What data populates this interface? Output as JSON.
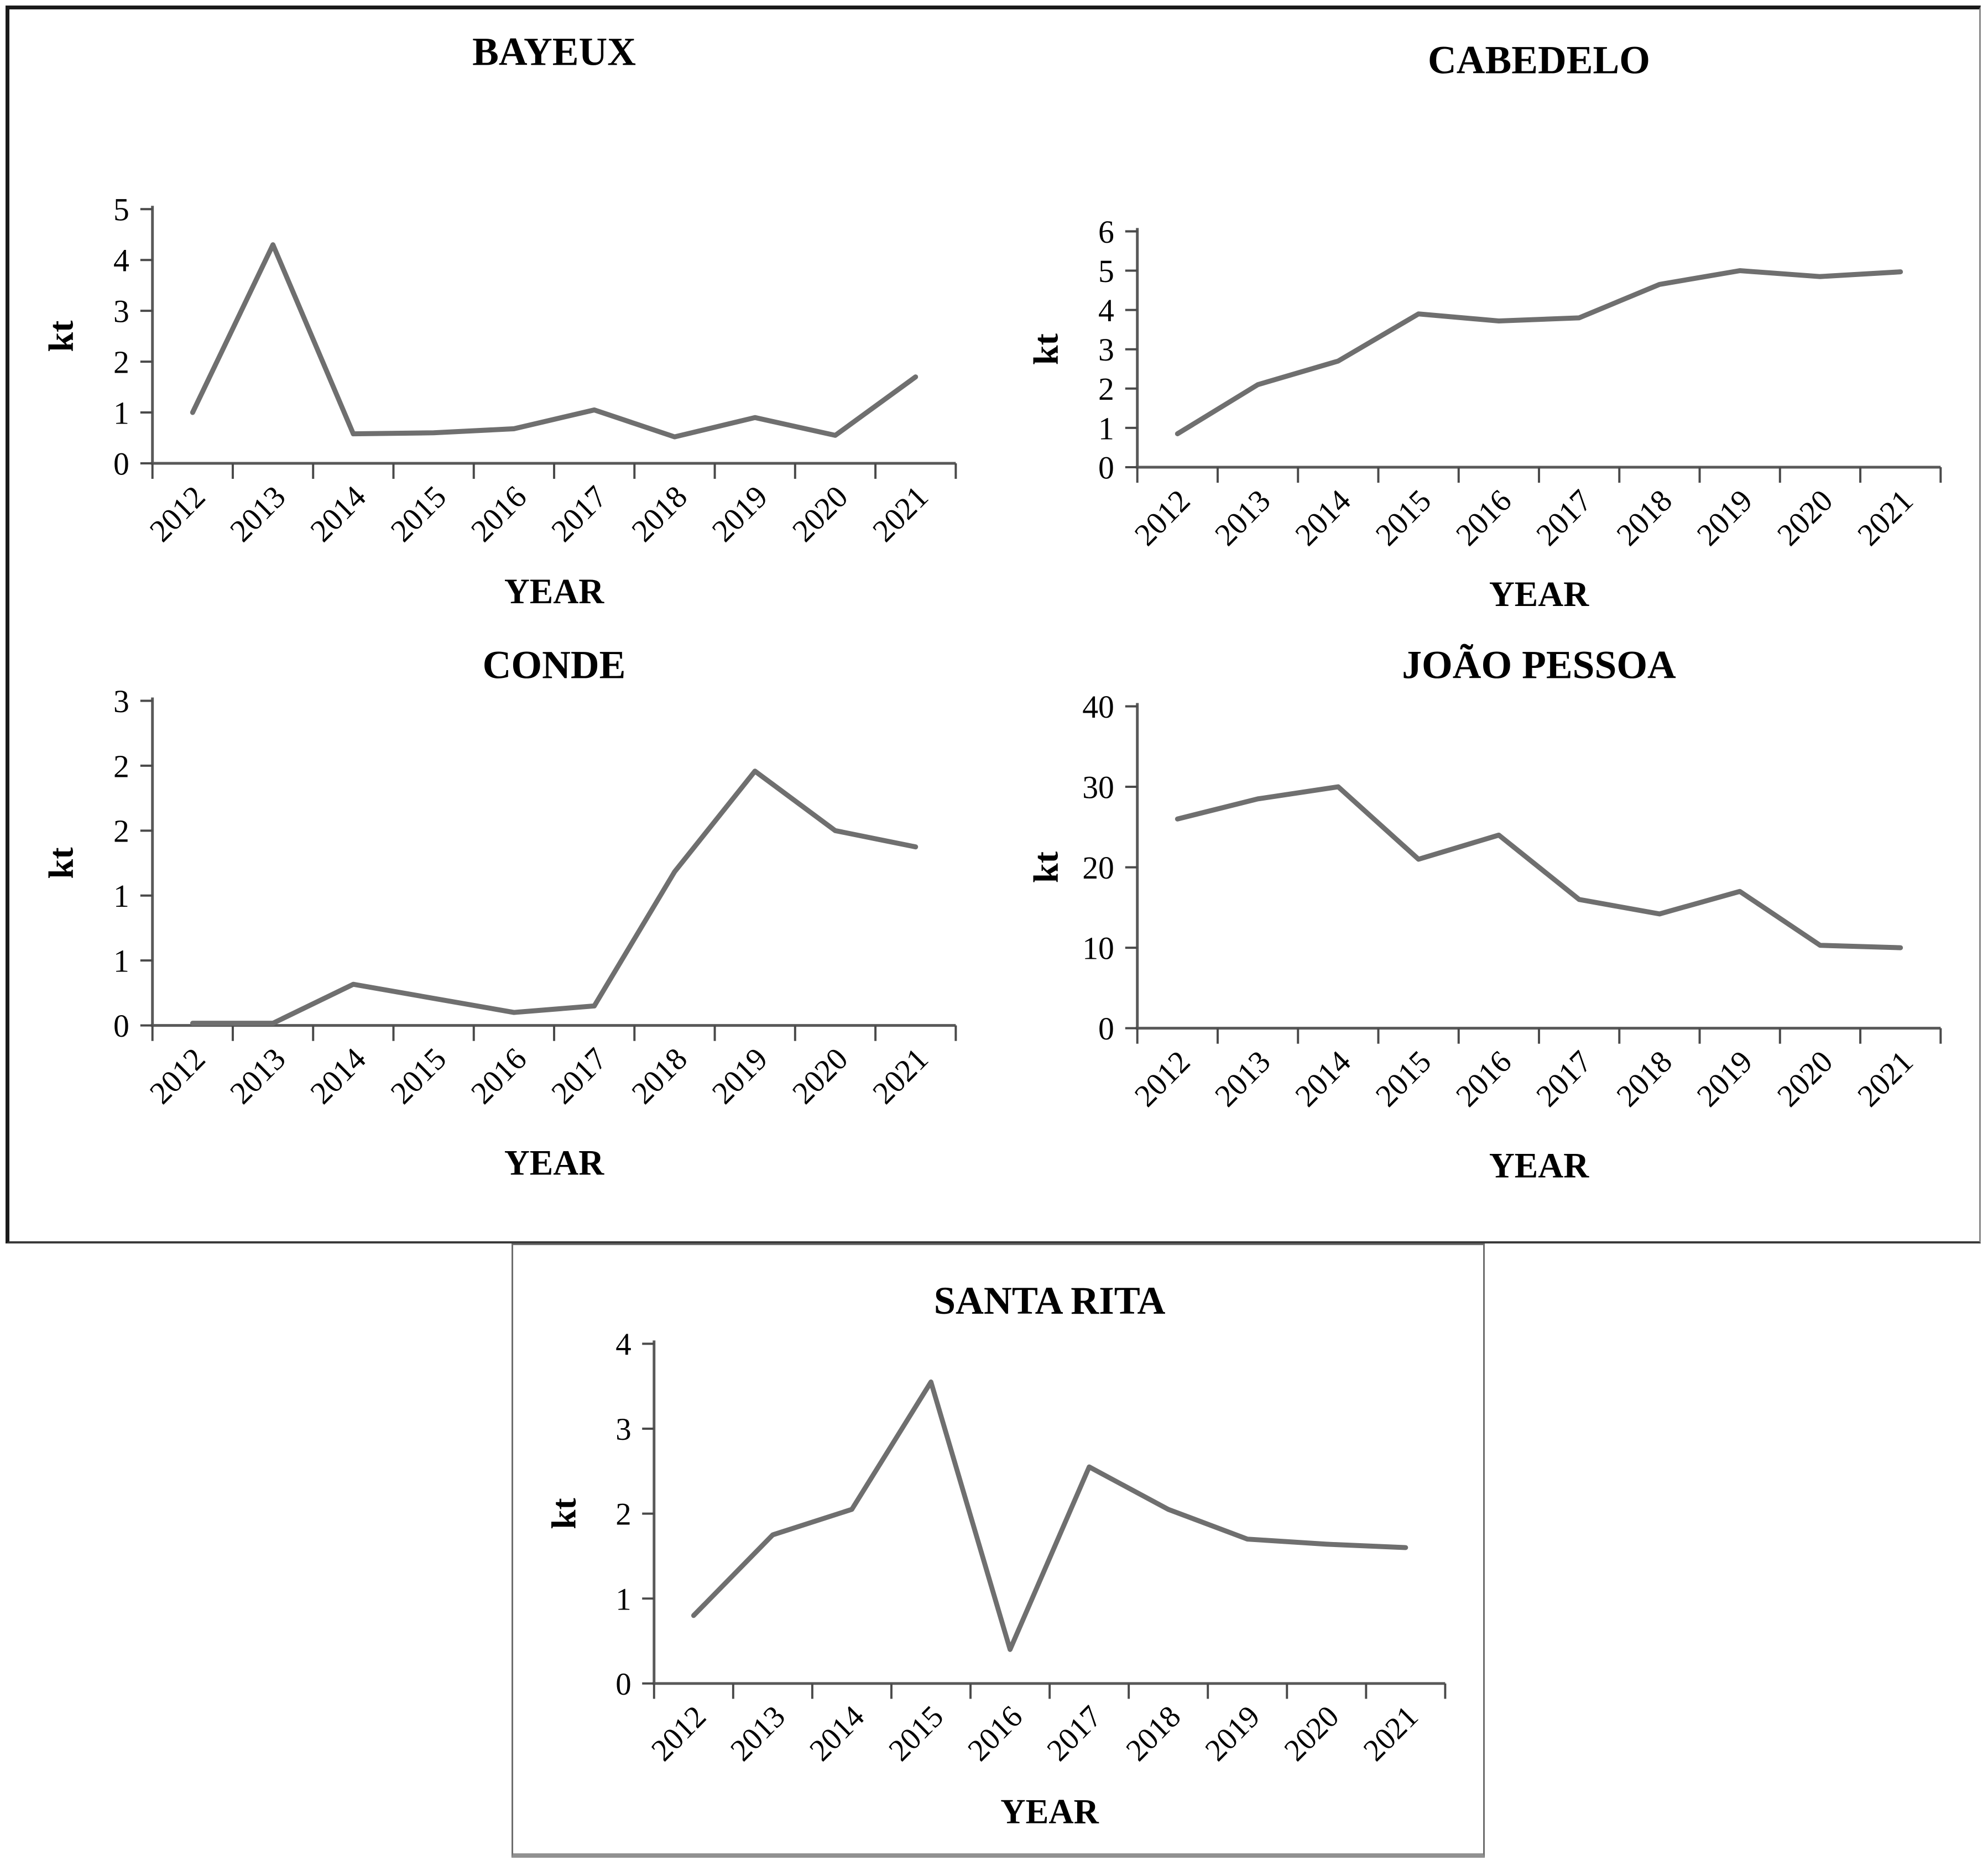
{
  "figure": {
    "description_labels": {
      "y_axis_label": "kt",
      "x_axis_label": "YEAR"
    },
    "colors": {
      "data_line": "#6f6f6f",
      "axis_line": "#595959",
      "tick_mark": "#4a4a4a",
      "text": "#000000",
      "background": "#ffffff",
      "outer_border_dark": "#1a1a1a",
      "inner_border_gray": "#6e6e6e"
    }
  },
  "chart_data": [
    {
      "type": "line",
      "title": "BAYEUX",
      "xlabel": "YEAR",
      "ylabel": "kt",
      "x": [
        "2012",
        "2013",
        "2014",
        "2015",
        "2016",
        "2017",
        "2018",
        "2019",
        "2020",
        "2021"
      ],
      "values": [
        1.0,
        4.3,
        0.58,
        0.6,
        0.68,
        1.05,
        0.52,
        0.9,
        0.55,
        1.7
      ],
      "ylim": [
        0,
        5
      ],
      "y_tick_values": [
        0,
        1,
        2,
        3,
        4,
        5
      ],
      "y_tick_labels": [
        "0",
        "1",
        "2",
        "3",
        "4",
        "5"
      ],
      "grid": false,
      "legend": "none",
      "x_tick_rotation_deg": -45
    },
    {
      "type": "line",
      "title": "CABEDELO",
      "xlabel": "YEAR",
      "ylabel": "kt",
      "x": [
        "2012",
        "2013",
        "2014",
        "2015",
        "2016",
        "2017",
        "2018",
        "2019",
        "2020",
        "2021"
      ],
      "values": [
        0.85,
        2.1,
        2.7,
        3.9,
        3.72,
        3.8,
        4.65,
        5.0,
        4.85,
        4.97
      ],
      "ylim": [
        0,
        6
      ],
      "y_tick_values": [
        0,
        1,
        2,
        3,
        4,
        5,
        6
      ],
      "y_tick_labels": [
        "0",
        "1",
        "2",
        "3",
        "4",
        "5",
        "6"
      ],
      "grid": false,
      "legend": "none",
      "x_tick_rotation_deg": -45
    },
    {
      "type": "line",
      "title": "CONDE",
      "xlabel": "YEAR",
      "ylabel": "kt",
      "x": [
        "2012",
        "2013",
        "2014",
        "2015",
        "2016",
        "2017",
        "2018",
        "2019",
        "2020",
        "2021"
      ],
      "values": [
        0.02,
        0.02,
        0.38,
        0.25,
        0.12,
        0.18,
        1.42,
        2.35,
        1.8,
        1.65
      ],
      "ylim": [
        0,
        3
      ],
      "y_tick_values": [
        0,
        0.6,
        1.2,
        1.8,
        2.4,
        3.0
      ],
      "y_tick_labels": [
        "0",
        "1",
        "1",
        "2",
        "2",
        "3"
      ],
      "grid": false,
      "legend": "none",
      "x_tick_rotation_deg": -45
    },
    {
      "type": "line",
      "title": "JOÃO PESSOA",
      "xlabel": "YEAR",
      "ylabel": "kt",
      "x": [
        "2012",
        "2013",
        "2014",
        "2015",
        "2016",
        "2017",
        "2018",
        "2019",
        "2020",
        "2021"
      ],
      "values": [
        26,
        28.5,
        30,
        21,
        24,
        16,
        14.2,
        17,
        10.3,
        10
      ],
      "ylim": [
        0,
        40
      ],
      "y_tick_values": [
        0,
        10,
        20,
        30,
        40
      ],
      "y_tick_labels": [
        "0",
        "10",
        "20",
        "30",
        "40"
      ],
      "grid": false,
      "legend": "none",
      "x_tick_rotation_deg": -45
    },
    {
      "type": "line",
      "title": "SANTA RITA",
      "xlabel": "YEAR",
      "ylabel": "kt",
      "x": [
        "2012",
        "2013",
        "2014",
        "2015",
        "2016",
        "2017",
        "2018",
        "2019",
        "2020",
        "2021"
      ],
      "values": [
        0.8,
        1.75,
        2.05,
        3.55,
        0.4,
        2.55,
        2.05,
        1.7,
        1.64,
        1.6
      ],
      "ylim": [
        0,
        4
      ],
      "y_tick_values": [
        0,
        1,
        2,
        3,
        4
      ],
      "y_tick_labels": [
        "0",
        "1",
        "2",
        "3",
        "4"
      ],
      "grid": false,
      "legend": "none",
      "x_tick_rotation_deg": -45
    }
  ]
}
